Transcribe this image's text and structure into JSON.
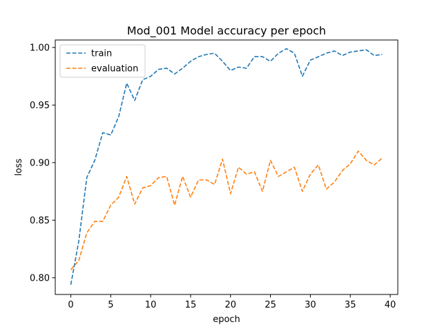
{
  "chart_data": {
    "type": "line",
    "title": "Mod_001 Model accuracy per epoch",
    "xlabel": "epoch",
    "ylabel": "loss",
    "xlim": [
      -1.95,
      40.95
    ],
    "ylim": [
      0.7855,
      1.0065
    ],
    "xticks": [
      0,
      5,
      10,
      15,
      20,
      25,
      30,
      35,
      40
    ],
    "yticks": [
      0.8,
      0.85,
      0.9,
      0.95,
      1.0
    ],
    "ytick_labels": [
      "0.80",
      "0.85",
      "0.90",
      "0.95",
      "1.00"
    ],
    "grid": false,
    "legend_position": "upper-left",
    "x": [
      0,
      1,
      2,
      3,
      4,
      5,
      6,
      7,
      8,
      9,
      10,
      11,
      12,
      13,
      14,
      15,
      16,
      17,
      18,
      19,
      20,
      21,
      22,
      23,
      24,
      25,
      26,
      27,
      28,
      29,
      30,
      31,
      32,
      33,
      34,
      35,
      36,
      37,
      38,
      39
    ],
    "series": [
      {
        "name": "train",
        "color": "#1f77b4",
        "values": [
          0.794,
          0.832,
          0.887,
          0.902,
          0.926,
          0.924,
          0.94,
          0.969,
          0.954,
          0.972,
          0.975,
          0.981,
          0.982,
          0.977,
          0.982,
          0.988,
          0.992,
          0.994,
          0.995,
          0.988,
          0.98,
          0.983,
          0.982,
          0.992,
          0.992,
          0.988,
          0.995,
          0.999,
          0.995,
          0.975,
          0.989,
          0.992,
          0.995,
          0.997,
          0.993,
          0.996,
          0.997,
          0.998,
          0.993,
          0.994
        ]
      },
      {
        "name": "evaluation",
        "color": "#ff7f0e",
        "values": [
          0.807,
          0.815,
          0.839,
          0.849,
          0.849,
          0.863,
          0.87,
          0.888,
          0.864,
          0.878,
          0.88,
          0.887,
          0.888,
          0.863,
          0.888,
          0.87,
          0.885,
          0.885,
          0.881,
          0.903,
          0.873,
          0.896,
          0.89,
          0.892,
          0.875,
          0.902,
          0.888,
          0.892,
          0.896,
          0.875,
          0.89,
          0.898,
          0.877,
          0.883,
          0.893,
          0.899,
          0.91,
          0.902,
          0.898,
          0.904
        ]
      }
    ]
  }
}
